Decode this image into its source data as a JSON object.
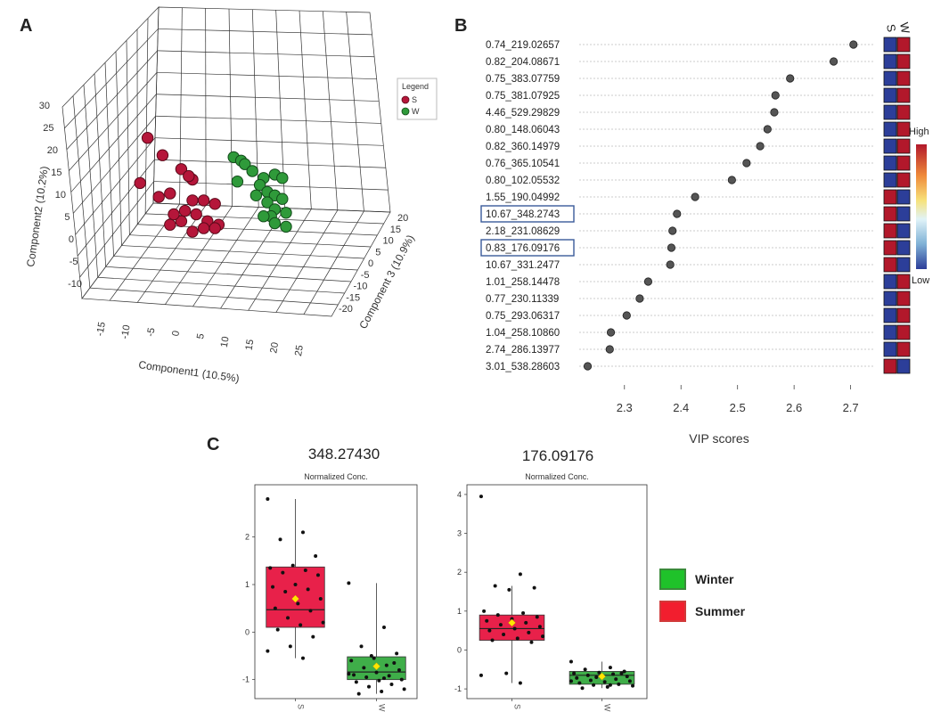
{
  "panels": {
    "a": "A",
    "b": "B",
    "c": "C"
  },
  "colors": {
    "summer_red": "#b5163a",
    "winter_green": "#2f9a3a",
    "box_red": "#e8214a",
    "box_green": "#3fae49",
    "heat_high": "#b2182b",
    "heat_low": "#2c3e99"
  },
  "chart_data": [
    {
      "type": "scatter",
      "title": "",
      "xlabel": "Component1 (10.5%)",
      "ylabel": "Component2 (10.2%)",
      "zlabel": "Component 3 (10.9%)",
      "x_ticks": [
        "-15",
        "-10",
        "-5",
        "0",
        "5",
        "10",
        "15",
        "20",
        "25"
      ],
      "y_ticks": [
        "30",
        "25",
        "20",
        "15",
        "10",
        "5",
        "0",
        "-5",
        "-10"
      ],
      "z_ticks": [
        "20",
        "15",
        "10",
        "5",
        "0",
        "-5",
        "-10",
        "-15",
        "-20"
      ],
      "legend": {
        "title": "Legend",
        "entries": [
          "S",
          "W"
        ]
      },
      "series": [
        {
          "name": "S",
          "color": "#b5163a",
          "points": [
            [
              -12,
              27
            ],
            [
              -8,
              22
            ],
            [
              -14,
              14
            ],
            [
              -3,
              18
            ],
            [
              -9,
              10
            ],
            [
              -6,
              11
            ],
            [
              0,
              15
            ],
            [
              0,
              9
            ],
            [
              3,
              9
            ],
            [
              6,
              8
            ],
            [
              -2,
              6
            ],
            [
              1,
              5
            ],
            [
              -6,
              2
            ],
            [
              -3,
              3
            ],
            [
              4,
              3
            ],
            [
              7,
              2
            ],
            [
              0,
              0
            ],
            [
              3,
              1
            ],
            [
              6,
              1
            ],
            [
              -5,
              5
            ],
            [
              -1,
              16
            ]
          ]
        },
        {
          "name": "W",
          "color": "#2f9a3a",
          "points": [
            [
              11,
              24
            ],
            [
              13,
              23
            ],
            [
              14,
              22
            ],
            [
              16,
              20
            ],
            [
              12,
              17
            ],
            [
              19,
              18
            ],
            [
              22,
              19
            ],
            [
              24,
              18
            ],
            [
              18,
              16
            ],
            [
              20,
              14
            ],
            [
              22,
              13
            ],
            [
              17,
              13
            ],
            [
              20,
              11
            ],
            [
              24,
              12
            ],
            [
              22,
              9
            ],
            [
              25,
              8
            ],
            [
              21,
              7
            ],
            [
              19,
              7
            ],
            [
              22,
              5
            ],
            [
              25,
              4
            ]
          ]
        }
      ]
    },
    {
      "type": "scatter",
      "title": "",
      "xlabel": "VIP scores",
      "ylabel": "",
      "xlim": [
        2.22,
        2.74
      ],
      "x_ticks": [
        "2.3",
        "2.4",
        "2.5",
        "2.6",
        "2.7"
      ],
      "heatmap_columns": [
        "S",
        "W"
      ],
      "heatmap_legend": {
        "high": "High",
        "low": "Low"
      },
      "features": [
        "0.74_219.02657",
        "0.82_204.08671",
        "0.75_383.07759",
        "0.75_381.07925",
        "4.46_529.29829",
        "0.80_148.06043",
        "0.82_360.14979",
        "0.76_365.10541",
        "0.80_102.05532",
        "1.55_190.04992",
        "10.67_348.2743",
        "2.18_231.08629",
        "0.83_176.09176",
        "10.67_331.2477",
        "1.01_258.14478",
        "0.77_230.11339",
        "0.75_293.06317",
        "1.04_258.10860",
        "2.74_286.13977",
        "3.01_538.28603"
      ],
      "values": [
        2.705,
        2.67,
        2.593,
        2.567,
        2.565,
        2.553,
        2.54,
        2.516,
        2.49,
        2.425,
        2.393,
        2.385,
        2.383,
        2.381,
        2.342,
        2.327,
        2.304,
        2.276,
        2.274,
        2.235
      ],
      "highlighted": [
        "10.67_348.2743",
        "0.83_176.09176"
      ],
      "heat_S": [
        "low",
        "low",
        "low",
        "low",
        "low",
        "low",
        "low",
        "low",
        "low",
        "high",
        "high",
        "high",
        "high",
        "high",
        "low",
        "low",
        "low",
        "low",
        "low",
        "high"
      ],
      "heat_W": [
        "high",
        "high",
        "high",
        "high",
        "high",
        "high",
        "high",
        "high",
        "high",
        "low",
        "low",
        "low",
        "low",
        "low",
        "high",
        "high",
        "high",
        "high",
        "high",
        "low"
      ]
    },
    {
      "type": "box",
      "title": "348.27430",
      "subtitle": "Normalized Conc.",
      "categories": [
        "S",
        "W"
      ],
      "y_ticks": [
        "-1",
        "0",
        "1",
        "2"
      ],
      "ylim": [
        -1.4,
        3.1
      ],
      "boxes": [
        {
          "name": "S",
          "q1": 0.1,
          "median": 0.47,
          "q3": 1.37,
          "min": -0.55,
          "max": 2.8,
          "mean": 0.7
        },
        {
          "name": "W",
          "q1": -1.0,
          "median": -0.84,
          "q3": -0.52,
          "min": -1.3,
          "max": 1.03,
          "mean": -0.72
        }
      ],
      "points": {
        "S": [
          2.8,
          2.1,
          1.95,
          1.6,
          1.4,
          1.35,
          1.3,
          1.25,
          1.2,
          1.0,
          0.95,
          0.9,
          0.85,
          0.7,
          0.6,
          0.5,
          0.45,
          0.3,
          0.2,
          0.15,
          0.05,
          -0.1,
          -0.3,
          -0.4,
          -0.55
        ],
        "W": [
          1.03,
          0.1,
          -0.3,
          -0.45,
          -0.55,
          -0.6,
          -0.7,
          -0.75,
          -0.8,
          -0.85,
          -0.9,
          -0.92,
          -0.95,
          -1.0,
          -1.02,
          -1.05,
          -1.1,
          -1.15,
          -1.2,
          -1.25,
          -1.3,
          -0.65,
          -0.5,
          -0.88,
          -0.97
        ]
      }
    },
    {
      "type": "box",
      "title": "176.09176",
      "subtitle": "Normalized Conc.",
      "categories": [
        "S",
        "W"
      ],
      "y_ticks": [
        "-1",
        "0",
        "1",
        "2",
        "3",
        "4"
      ],
      "ylim": [
        -1.25,
        4.25
      ],
      "boxes": [
        {
          "name": "S",
          "q1": 0.25,
          "median": 0.55,
          "q3": 0.9,
          "min": -0.85,
          "max": 1.65,
          "mean": 0.7
        },
        {
          "name": "W",
          "q1": -0.88,
          "median": -0.65,
          "q3": -0.55,
          "min": -0.98,
          "max": -0.3,
          "mean": -0.68
        }
      ],
      "points": {
        "S": [
          3.95,
          1.95,
          1.65,
          1.6,
          1.55,
          1.0,
          0.95,
          0.9,
          0.85,
          0.8,
          0.75,
          0.7,
          0.65,
          0.6,
          0.55,
          0.5,
          0.45,
          0.4,
          0.35,
          0.3,
          0.25,
          0.2,
          -0.6,
          -0.65,
          -0.85
        ],
        "W": [
          -0.3,
          -0.45,
          -0.5,
          -0.55,
          -0.58,
          -0.6,
          -0.62,
          -0.65,
          -0.68,
          -0.7,
          -0.72,
          -0.75,
          -0.78,
          -0.8,
          -0.82,
          -0.85,
          -0.88,
          -0.9,
          -0.92,
          -0.95,
          -0.98,
          -0.6,
          -0.7,
          -0.8,
          -0.9
        ]
      }
    }
  ],
  "legend_c": [
    {
      "label": "Winter",
      "color": "#1fc22a",
      "border": "#3a8a3a"
    },
    {
      "label": "Summer",
      "color": "#f21e2e",
      "border": "#d03a3a"
    }
  ]
}
